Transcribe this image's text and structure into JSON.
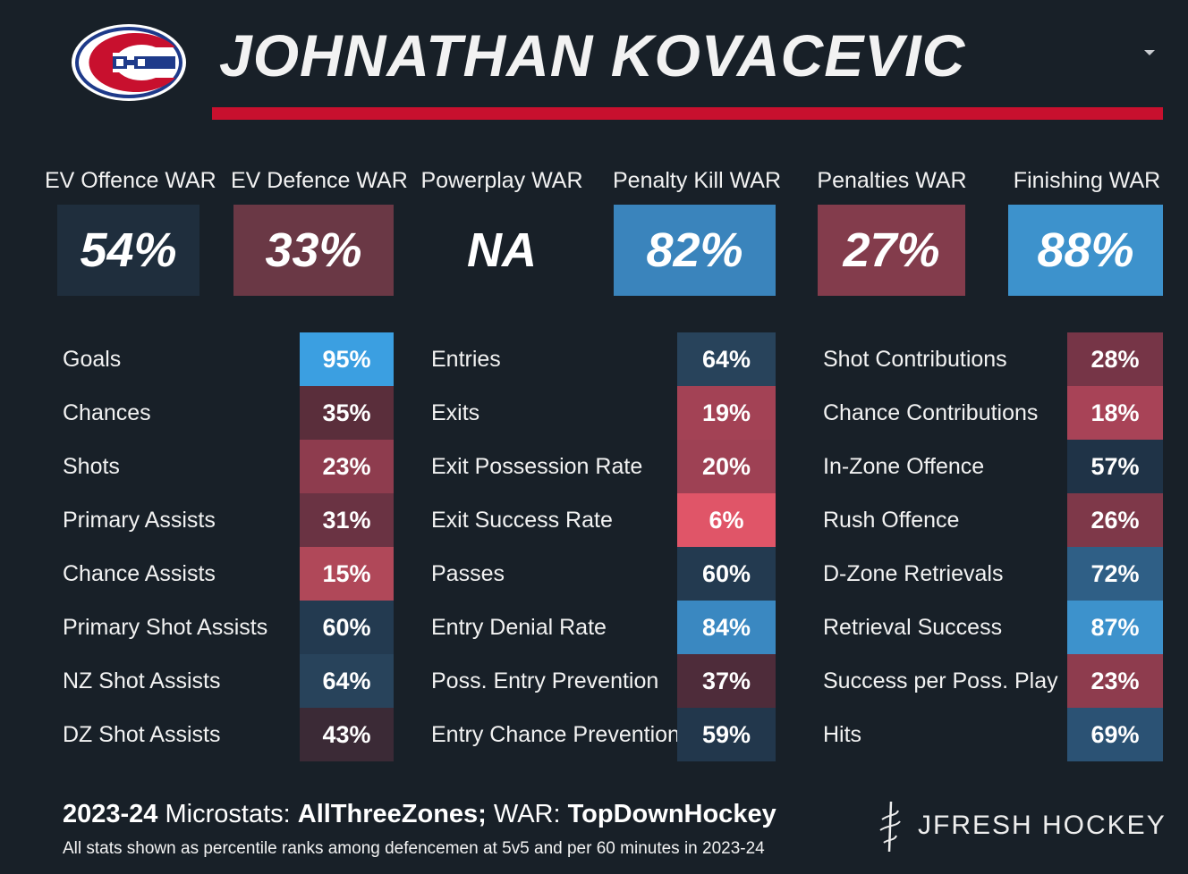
{
  "header": {
    "player_name": "JOHNATHAN KOVACEVIC",
    "logo_icon": "habs-logo-icon",
    "accent_color": "#c8102e"
  },
  "war": [
    {
      "label": "EV Offence WAR",
      "value": "54%",
      "color": "#1f2e3d"
    },
    {
      "label": "EV Defence WAR",
      "value": "33%",
      "color": "#6a3845"
    },
    {
      "label": "Powerplay WAR",
      "value": "NA",
      "color": "#182028"
    },
    {
      "label": "Penalty Kill WAR",
      "value": "82%",
      "color": "#3a84bc"
    },
    {
      "label": "Penalties WAR",
      "value": "27%",
      "color": "#833c4c"
    },
    {
      "label": "Finishing WAR",
      "value": "88%",
      "color": "#3d92cc"
    }
  ],
  "columns": [
    {
      "stats": [
        {
          "label": "Goals",
          "value": "95%",
          "color": "#3b9fe1"
        },
        {
          "label": "Chances",
          "value": "35%",
          "color": "#5a2e3b"
        },
        {
          "label": "Shots",
          "value": "23%",
          "color": "#8e3c4e"
        },
        {
          "label": "Primary Assists",
          "value": "31%",
          "color": "#6a3343"
        },
        {
          "label": "Chance Assists",
          "value": "15%",
          "color": "#b04859"
        },
        {
          "label": "Primary Shot Assists",
          "value": "60%",
          "color": "#233a50"
        },
        {
          "label": "NZ Shot Assists",
          "value": "64%",
          "color": "#28435b"
        },
        {
          "label": "DZ Shot Assists",
          "value": "43%",
          "color": "#3b2a36"
        }
      ]
    },
    {
      "stats": [
        {
          "label": "Entries",
          "value": "64%",
          "color": "#28435b"
        },
        {
          "label": "Exits",
          "value": "19%",
          "color": "#a34255"
        },
        {
          "label": "Exit Possession Rate",
          "value": "20%",
          "color": "#9e4154"
        },
        {
          "label": "Exit Success Rate",
          "value": "6%",
          "color": "#e05568"
        },
        {
          "label": "Passes",
          "value": "60%",
          "color": "#233a50"
        },
        {
          "label": "Entry Denial Rate",
          "value": "84%",
          "color": "#3a88c1"
        },
        {
          "label": "Poss. Entry Prevention",
          "value": "37%",
          "color": "#4e2c3a"
        },
        {
          "label": "Entry Chance Prevention",
          "value": "59%",
          "color": "#22374c"
        }
      ]
    },
    {
      "stats": [
        {
          "label": "Shot Contributions",
          "value": "28%",
          "color": "#763547"
        },
        {
          "label": "Chance Contributions",
          "value": "18%",
          "color": "#a84357"
        },
        {
          "label": "In-Zone Offence",
          "value": "57%",
          "color": "#1f3347"
        },
        {
          "label": "Rush Offence",
          "value": "26%",
          "color": "#7e3849"
        },
        {
          "label": "D-Zone Retrievals",
          "value": "72%",
          "color": "#2f5f86"
        },
        {
          "label": "Retrieval Success",
          "value": "87%",
          "color": "#3d92cc"
        },
        {
          "label": "Success per Poss. Play",
          "value": "23%",
          "color": "#8e3c4e"
        },
        {
          "label": "Hits",
          "value": "69%",
          "color": "#2b5274"
        }
      ]
    }
  ],
  "footer": {
    "season": "2023-24",
    "microstats_label": "Microstats:",
    "microstats_source": "AllThreeZones;",
    "war_label": "WAR:",
    "war_source": "TopDownHockey",
    "note": "All stats shown as percentile ranks among defencemen at 5v5 and per 60 minutes in 2023-24",
    "brand": "JFRESH HOCKEY",
    "brand_icon": "jfresh-logo-icon"
  }
}
